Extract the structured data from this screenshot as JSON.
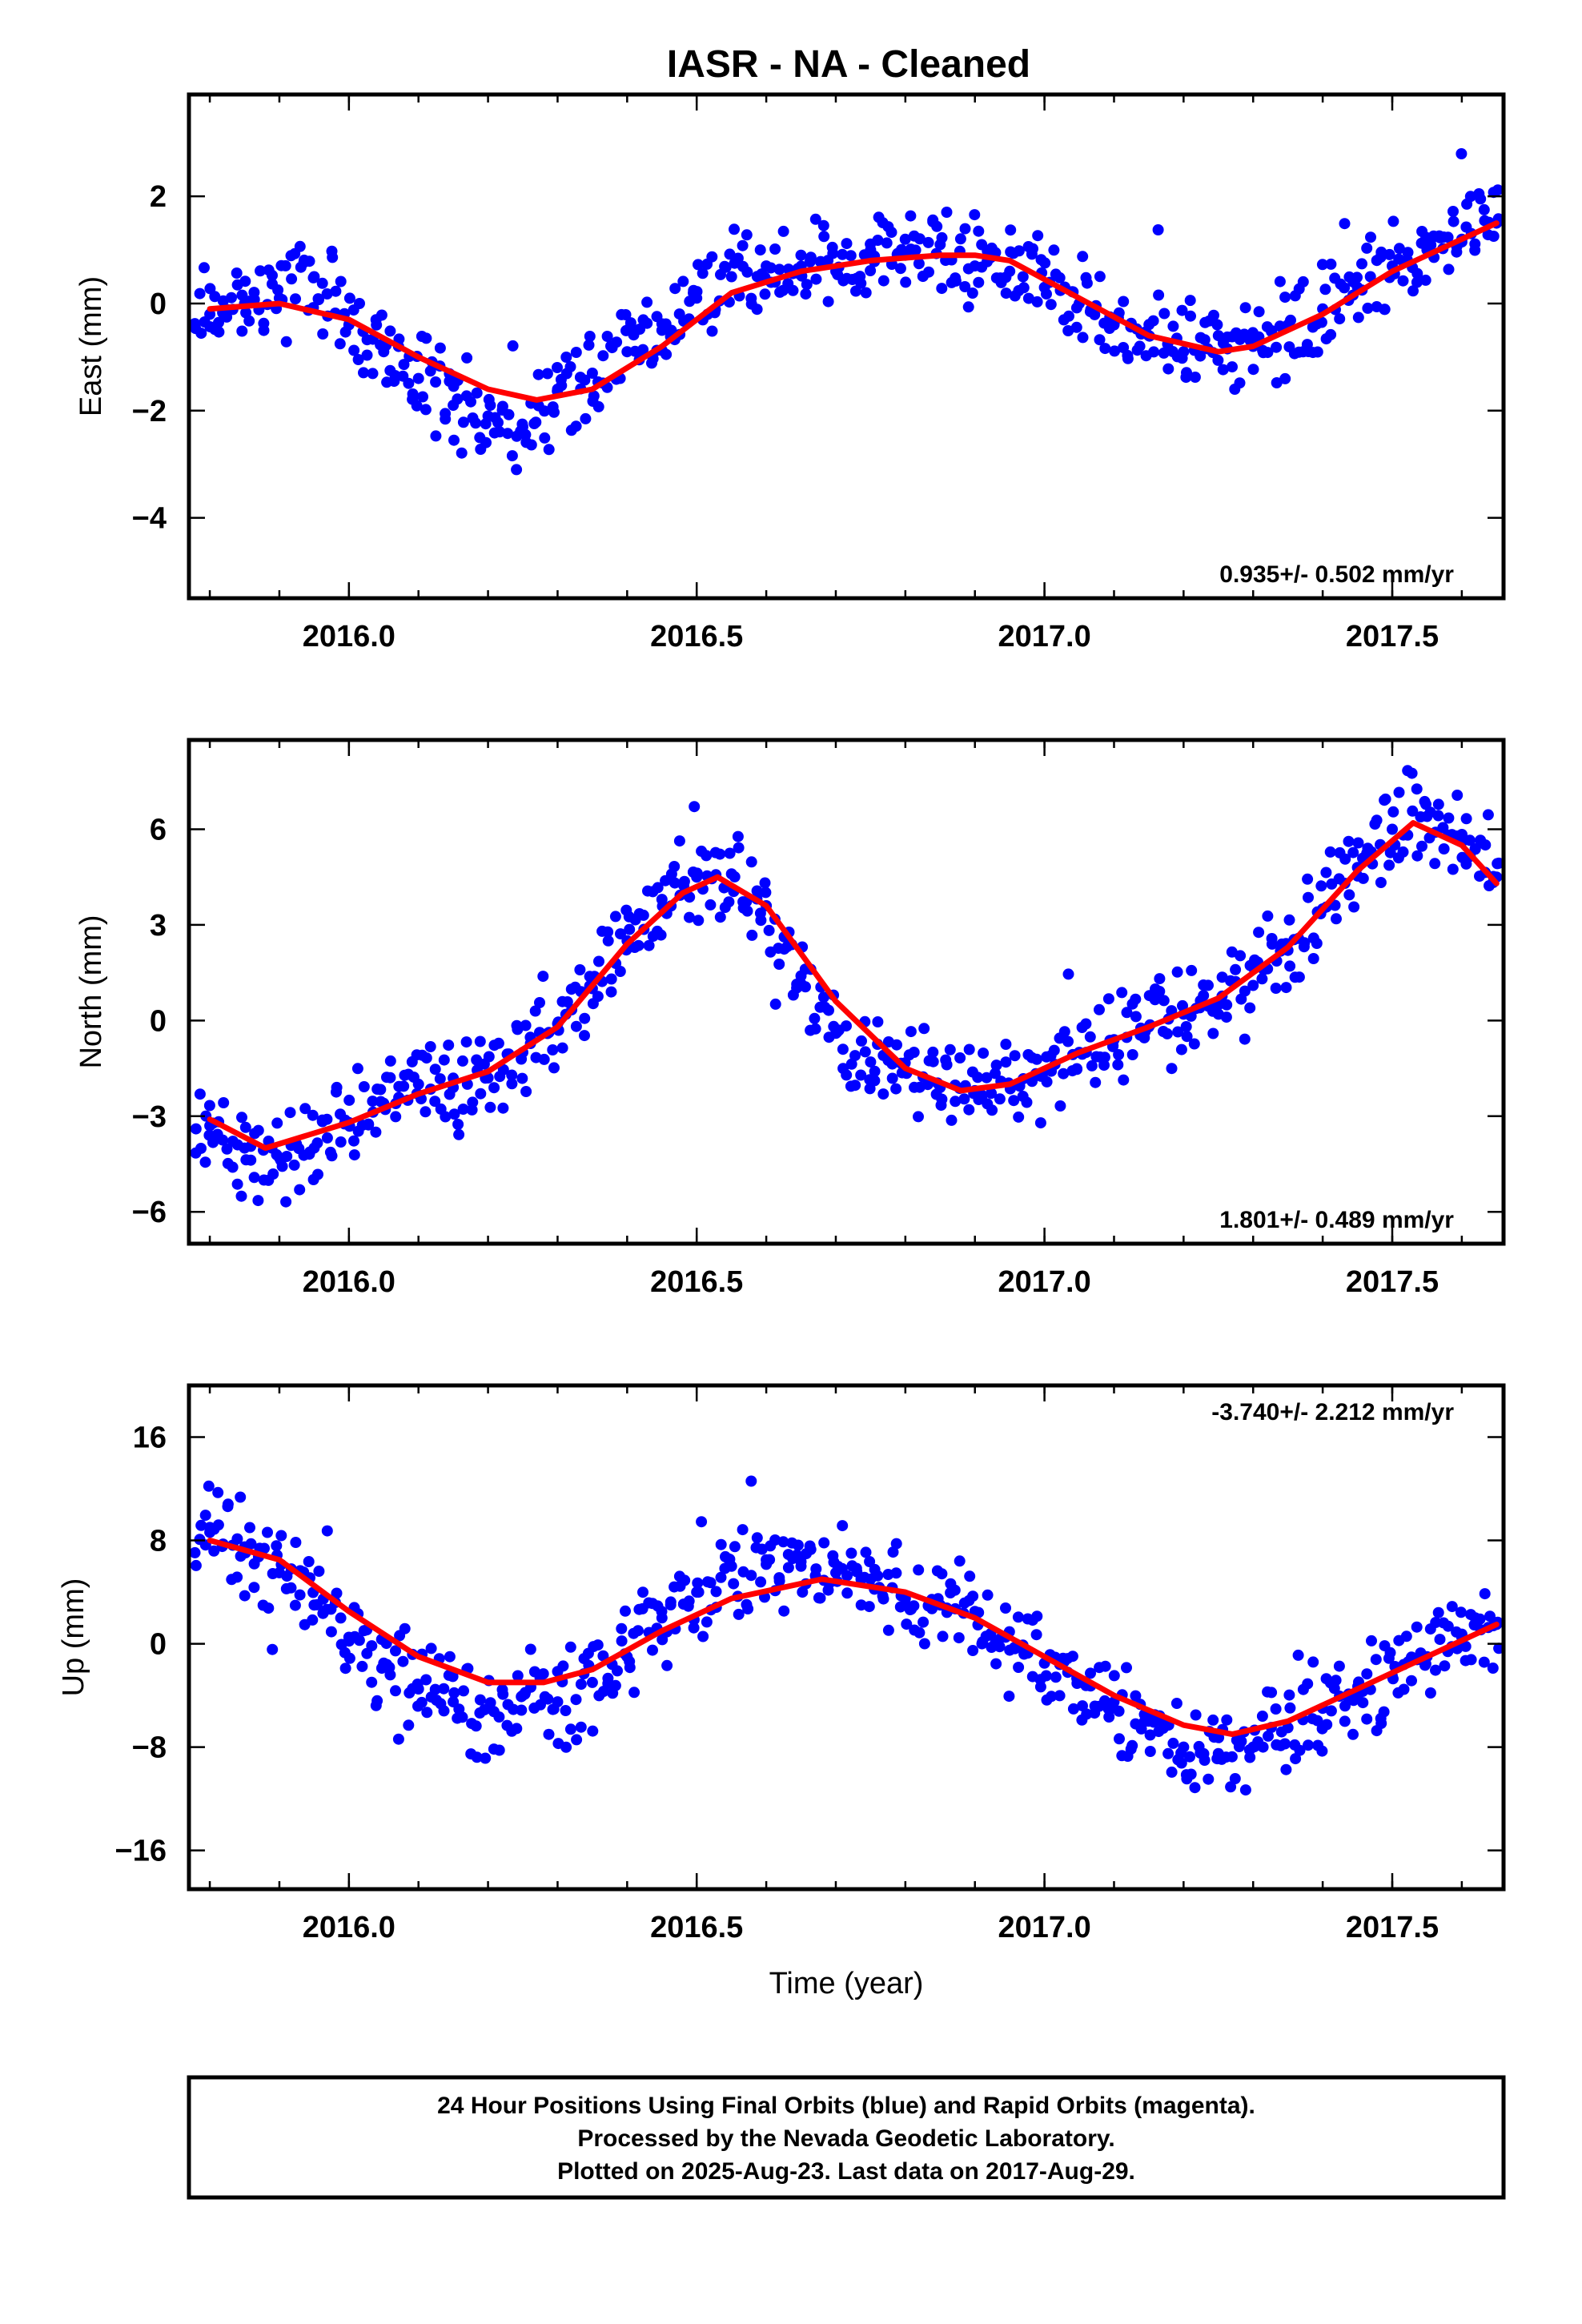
{
  "title": "IASR  - NA - Cleaned",
  "colors": {
    "points": "#0000ff",
    "fit": "#ff0000",
    "frame": "#000000"
  },
  "chart_data": [
    {
      "type": "scatter",
      "ylabel": "East (mm)",
      "xlabel": "",
      "xlim": [
        2015.77,
        2017.66
      ],
      "ylim": [
        -5.5,
        3.9
      ],
      "xticks": [
        2016.0,
        2016.5,
        2017.0,
        2017.5
      ],
      "xtick_labels": [
        "2016.0",
        "2016.5",
        "2017.0",
        "2017.5"
      ],
      "yticks": [
        -4,
        -2,
        0,
        2
      ],
      "ytick_labels": [
        "−4",
        "−2",
        "0",
        "2"
      ],
      "rate": "0.935+/- 0.502 mm/yr",
      "rate_position": "bottom-right",
      "series": [
        {
          "kind": "points",
          "color": "#0000ff",
          "x": [
            2015.8,
            2015.85,
            2015.9,
            2015.95,
            2016.0,
            2016.05,
            2016.1,
            2016.15,
            2016.2,
            2016.25,
            2016.3,
            2016.35,
            2016.4,
            2016.45,
            2016.5,
            2016.55,
            2016.6,
            2016.65,
            2016.7,
            2016.75,
            2016.8,
            2016.85,
            2016.9,
            2016.95,
            2017.0,
            2017.05,
            2017.1,
            2017.15,
            2017.2,
            2017.25,
            2017.3,
            2017.35,
            2017.4,
            2017.45,
            2017.5,
            2017.55,
            2017.6,
            2017.65
          ],
          "y": [
            -0.2,
            0.0,
            0.1,
            0.5,
            -0.4,
            -0.9,
            -1.4,
            -1.9,
            -2.1,
            -2.3,
            -1.6,
            -1.3,
            -0.9,
            -0.5,
            0.1,
            0.5,
            0.7,
            0.9,
            0.6,
            1.0,
            0.9,
            1.1,
            0.7,
            0.6,
            0.3,
            0.0,
            -0.4,
            -0.6,
            -0.9,
            -0.6,
            -0.8,
            -0.4,
            -0.1,
            0.3,
            0.7,
            1.0,
            1.2,
            1.5
          ]
        },
        {
          "kind": "fit",
          "color": "#ff0000",
          "x": [
            2015.8,
            2015.9,
            2016.0,
            2016.1,
            2016.2,
            2016.27,
            2016.35,
            2016.45,
            2016.55,
            2016.65,
            2016.75,
            2016.85,
            2016.9,
            2016.95,
            2017.05,
            2017.15,
            2017.25,
            2017.3,
            2017.4,
            2017.5,
            2017.65
          ],
          "y": [
            -0.1,
            0.0,
            -0.3,
            -1.0,
            -1.6,
            -1.8,
            -1.6,
            -0.8,
            0.2,
            0.6,
            0.8,
            0.9,
            0.9,
            0.8,
            0.1,
            -0.6,
            -0.9,
            -0.8,
            -0.2,
            0.6,
            1.5
          ]
        }
      ]
    },
    {
      "type": "scatter",
      "ylabel": "North (mm)",
      "xlabel": "",
      "xlim": [
        2015.77,
        2017.66
      ],
      "ylim": [
        -7.0,
        8.8
      ],
      "xticks": [
        2016.0,
        2016.5,
        2017.0,
        2017.5
      ],
      "xtick_labels": [
        "2016.0",
        "2016.5",
        "2017.0",
        "2017.5"
      ],
      "yticks": [
        -6,
        -3,
        0,
        3,
        6
      ],
      "ytick_labels": [
        "−6",
        "−3",
        "0",
        "3",
        "6"
      ],
      "rate": "1.801+/- 0.489 mm/yr",
      "rate_position": "bottom-right",
      "series": [
        {
          "kind": "points",
          "color": "#0000ff",
          "x": [
            2015.8,
            2015.85,
            2015.9,
            2015.95,
            2016.0,
            2016.05,
            2016.1,
            2016.15,
            2016.2,
            2016.25,
            2016.3,
            2016.35,
            2016.4,
            2016.45,
            2016.5,
            2016.55,
            2016.6,
            2016.65,
            2016.7,
            2016.75,
            2016.8,
            2016.85,
            2016.9,
            2016.95,
            2017.0,
            2017.05,
            2017.1,
            2017.15,
            2017.2,
            2017.25,
            2017.3,
            2017.35,
            2017.4,
            2017.45,
            2017.5,
            2017.55,
            2017.6,
            2017.65
          ],
          "y": [
            -3.3,
            -4.0,
            -4.3,
            -4.0,
            -3.2,
            -2.6,
            -2.0,
            -2.1,
            -1.8,
            -1.0,
            -0.1,
            1.0,
            2.5,
            3.8,
            4.5,
            4.6,
            3.6,
            1.4,
            -0.4,
            -1.3,
            -1.6,
            -2.1,
            -2.2,
            -2.0,
            -1.6,
            -1.0,
            -0.6,
            -0.2,
            0.2,
            0.5,
            1.1,
            2.2,
            3.5,
            4.8,
            6.0,
            6.4,
            5.6,
            4.5
          ]
        },
        {
          "kind": "fit",
          "color": "#ff0000",
          "x": [
            2015.8,
            2015.88,
            2016.0,
            2016.1,
            2016.2,
            2016.3,
            2016.4,
            2016.48,
            2016.53,
            2016.6,
            2016.7,
            2016.8,
            2016.88,
            2016.95,
            2017.05,
            2017.15,
            2017.25,
            2017.35,
            2017.45,
            2017.53,
            2017.6,
            2017.65
          ],
          "y": [
            -3.1,
            -4.0,
            -3.2,
            -2.3,
            -1.6,
            -0.2,
            2.4,
            4.0,
            4.5,
            3.6,
            0.6,
            -1.5,
            -2.2,
            -2.0,
            -1.0,
            -0.2,
            0.7,
            2.3,
            4.7,
            6.2,
            5.5,
            4.3
          ]
        }
      ]
    },
    {
      "type": "scatter",
      "ylabel": "Up (mm)",
      "xlabel": "Time (year)",
      "xlim": [
        2015.77,
        2017.66
      ],
      "ylim": [
        -19,
        20
      ],
      "xticks": [
        2016.0,
        2016.5,
        2017.0,
        2017.5
      ],
      "xtick_labels": [
        "2016.0",
        "2016.5",
        "2017.0",
        "2017.5"
      ],
      "yticks": [
        -16,
        -8,
        0,
        8,
        16
      ],
      "ytick_labels": [
        "−16",
        "−8",
        "0",
        "8",
        "16"
      ],
      "rate": "-3.740+/- 2.212 mm/yr",
      "rate_position": "top-right",
      "series": [
        {
          "kind": "points",
          "color": "#0000ff",
          "x": [
            2015.8,
            2015.85,
            2015.9,
            2015.95,
            2016.0,
            2016.05,
            2016.1,
            2016.15,
            2016.2,
            2016.25,
            2016.3,
            2016.35,
            2016.4,
            2016.45,
            2016.5,
            2016.55,
            2016.6,
            2016.65,
            2016.7,
            2016.75,
            2016.8,
            2016.85,
            2016.9,
            2016.95,
            2017.0,
            2017.05,
            2017.1,
            2017.15,
            2017.2,
            2017.25,
            2017.3,
            2017.35,
            2017.4,
            2017.45,
            2017.5,
            2017.55,
            2017.6,
            2017.65
          ],
          "y": [
            9.0,
            7.5,
            5.5,
            3.0,
            0.5,
            -1.5,
            -3.5,
            -4.5,
            -5.0,
            -4.0,
            -4.5,
            -3.0,
            -1.0,
            2.0,
            4.0,
            6.0,
            6.5,
            6.0,
            5.5,
            5.0,
            3.5,
            3.0,
            2.5,
            -0.5,
            -1.5,
            -3.0,
            -4.5,
            -6.0,
            -8.0,
            -8.5,
            -8.0,
            -6.5,
            -5.0,
            -4.0,
            -2.5,
            -1.0,
            0.5,
            1.5
          ]
        },
        {
          "kind": "fit",
          "color": "#ff0000",
          "x": [
            2015.8,
            2015.9,
            2016.0,
            2016.1,
            2016.2,
            2016.28,
            2016.35,
            2016.45,
            2016.55,
            2016.68,
            2016.8,
            2016.9,
            2017.0,
            2017.1,
            2017.2,
            2017.27,
            2017.35,
            2017.45,
            2017.55,
            2017.65
          ],
          "y": [
            8.0,
            6.5,
            2.5,
            -1.0,
            -3.0,
            -3.0,
            -2.0,
            1.0,
            3.5,
            5.0,
            4.0,
            2.0,
            -1.0,
            -4.0,
            -6.3,
            -7.0,
            -6.0,
            -3.5,
            -1.0,
            1.5
          ]
        }
      ]
    }
  ],
  "footer": {
    "lines": [
      "24 Hour Positions Using Final Orbits (blue) and Rapid Orbits (magenta).",
      "Processed by the Nevada Geodetic Laboratory.",
      "Plotted on 2025-Aug-23. Last data on 2017-Aug-29."
    ]
  }
}
